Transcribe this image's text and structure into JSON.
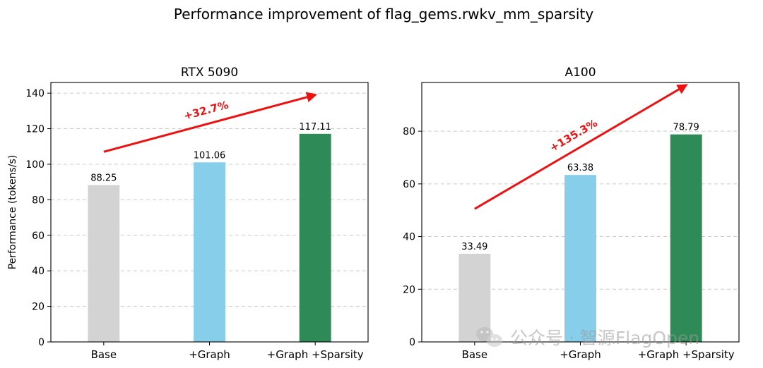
{
  "figure": {
    "title": "Performance improvement of flag_gems.rwkv_mm_sparsity",
    "watermark": "公众号 · 智源FlagOpen"
  },
  "colors": {
    "base": "#d3d3d3",
    "graph": "#87ceeb",
    "sparsity": "#2e8b57",
    "arrow": "#ee1111"
  },
  "chart_data": [
    {
      "type": "bar",
      "title": "RTX 5090",
      "ylabel": "Performance (tokens/s)",
      "xlabel": "",
      "categories": [
        "Base",
        "+Graph",
        "+Graph +Sparsity"
      ],
      "values": [
        88.25,
        101.06,
        117.11
      ],
      "value_labels": [
        "88.25",
        "101.06",
        "117.11"
      ],
      "ylim": [
        0,
        146
      ],
      "yticks": [
        0,
        20,
        40,
        60,
        80,
        100,
        120,
        140
      ],
      "grid": "y-dashed",
      "annotation": {
        "text": "+32.7%",
        "from": [
          0,
          107
        ],
        "to": [
          2,
          139
        ]
      }
    },
    {
      "type": "bar",
      "title": "A100",
      "ylabel": "",
      "xlabel": "",
      "categories": [
        "Base",
        "+Graph",
        "+Graph +Sparsity"
      ],
      "values": [
        33.49,
        63.38,
        78.79
      ],
      "value_labels": [
        "33.49",
        "63.38",
        "78.79"
      ],
      "ylim": [
        0,
        98.5
      ],
      "yticks": [
        0,
        20,
        40,
        60,
        80
      ],
      "grid": "y-dashed",
      "annotation": {
        "text": "+135.3%",
        "from": [
          0,
          50.5
        ],
        "to": [
          2,
          97.5
        ]
      }
    }
  ]
}
